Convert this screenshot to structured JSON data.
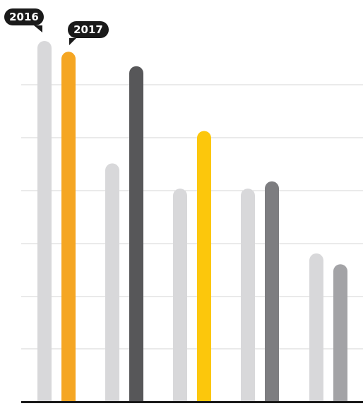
{
  "chart_data": {
    "type": "bar",
    "categories": [
      "",
      "",
      "",
      "",
      ""
    ],
    "series": [
      {
        "name": "2016",
        "values": [
          100,
          66,
          59,
          59,
          41
        ],
        "colors": [
          "#d8d8da",
          "#d8d8da",
          "#d8d8da",
          "#d8d8da",
          "#d8d8da"
        ]
      },
      {
        "name": "2017",
        "values": [
          97,
          93,
          75,
          61,
          38
        ],
        "colors": [
          "#f5a623",
          "#575759",
          "#fcc70c",
          "#7d7d80",
          "#a3a3a6"
        ]
      }
    ],
    "ylim": [
      0,
      100
    ],
    "grid": true,
    "legend": "top-left"
  }
}
